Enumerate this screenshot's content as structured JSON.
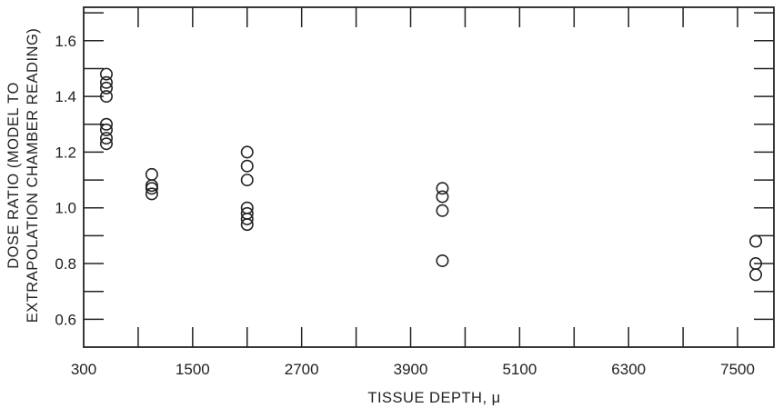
{
  "chart_data": {
    "type": "scatter",
    "xlabel": "TISSUE DEPTH, μ",
    "ylabel_line1": "DOSE RATIO (MODEL TO",
    "ylabel_line2": "EXTRAPOLATION CHAMBER READING)",
    "xlim": [
      300,
      7900
    ],
    "ylim": [
      0.5,
      1.72
    ],
    "x_ticks": [
      300,
      1500,
      2700,
      3900,
      5100,
      6300,
      7500
    ],
    "x_tick_labels": [
      "300",
      "1500",
      "2700",
      "3900",
      "5100",
      "6300",
      "7500"
    ],
    "y_ticks": [
      0.6,
      0.8,
      1.0,
      1.2,
      1.4,
      1.6
    ],
    "y_tick_labels": [
      "0.6",
      "0.8",
      "1.0",
      "1.2",
      "1.4",
      "1.6"
    ],
    "grid": false,
    "series": [
      {
        "marker": "open-circle",
        "points": [
          {
            "x": 550,
            "y": 1.48
          },
          {
            "x": 550,
            "y": 1.45
          },
          {
            "x": 550,
            "y": 1.43
          },
          {
            "x": 550,
            "y": 1.4
          },
          {
            "x": 550,
            "y": 1.3
          },
          {
            "x": 550,
            "y": 1.28
          },
          {
            "x": 550,
            "y": 1.25
          },
          {
            "x": 550,
            "y": 1.23
          },
          {
            "x": 1050,
            "y": 1.12
          },
          {
            "x": 1050,
            "y": 1.08
          },
          {
            "x": 1050,
            "y": 1.07
          },
          {
            "x": 1050,
            "y": 1.05
          },
          {
            "x": 2100,
            "y": 1.2
          },
          {
            "x": 2100,
            "y": 1.15
          },
          {
            "x": 2100,
            "y": 1.1
          },
          {
            "x": 2100,
            "y": 1.0
          },
          {
            "x": 2100,
            "y": 0.98
          },
          {
            "x": 2100,
            "y": 0.96
          },
          {
            "x": 2100,
            "y": 0.94
          },
          {
            "x": 4250,
            "y": 1.07
          },
          {
            "x": 4250,
            "y": 1.04
          },
          {
            "x": 4250,
            "y": 0.99
          },
          {
            "x": 4250,
            "y": 0.81
          },
          {
            "x": 7700,
            "y": 0.88
          },
          {
            "x": 7700,
            "y": 0.8
          },
          {
            "x": 7700,
            "y": 0.76
          }
        ]
      }
    ]
  }
}
